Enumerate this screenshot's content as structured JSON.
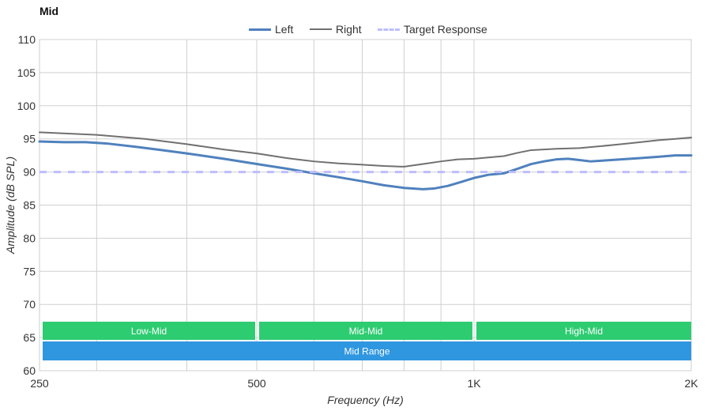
{
  "chart_data": {
    "type": "line",
    "title": "Mid",
    "xlabel": "Frequency (Hz)",
    "ylabel": "Amplitude (dB SPL)",
    "x_scale": "log",
    "xlim": [
      250,
      2000
    ],
    "ylim": [
      60,
      110
    ],
    "x_ticks": [
      {
        "value": 250,
        "label": "250"
      },
      {
        "value": 500,
        "label": "500"
      },
      {
        "value": 1000,
        "label": "1K"
      },
      {
        "value": 2000,
        "label": "2K"
      }
    ],
    "y_ticks": [
      60,
      65,
      70,
      75,
      80,
      85,
      90,
      95,
      100,
      105,
      110
    ],
    "x_minor_gridlines": [
      300,
      400,
      500,
      600,
      700,
      800,
      900,
      1000
    ],
    "grid": true,
    "legend_position": "top-center",
    "series": [
      {
        "name": "Left",
        "color": "#4f81bd",
        "style": "solid",
        "x": [
          250,
          270,
          290,
          310,
          340,
          370,
          400,
          450,
          500,
          550,
          600,
          650,
          700,
          750,
          800,
          850,
          880,
          920,
          960,
          1000,
          1050,
          1100,
          1150,
          1200,
          1250,
          1300,
          1350,
          1400,
          1450,
          1500,
          1600,
          1700,
          1800,
          1900,
          2000
        ],
        "y": [
          94.6,
          94.5,
          94.5,
          94.3,
          93.8,
          93.3,
          92.8,
          92.0,
          91.2,
          90.5,
          89.8,
          89.2,
          88.6,
          88.0,
          87.6,
          87.4,
          87.5,
          87.9,
          88.5,
          89.1,
          89.6,
          89.8,
          90.5,
          91.2,
          91.6,
          91.9,
          92.0,
          91.8,
          91.6,
          91.7,
          91.9,
          92.1,
          92.3,
          92.5,
          92.5
        ]
      },
      {
        "name": "Right",
        "color": "#707070",
        "style": "solid",
        "x": [
          250,
          300,
          350,
          400,
          450,
          500,
          550,
          600,
          650,
          700,
          750,
          800,
          850,
          900,
          950,
          1000,
          1050,
          1100,
          1150,
          1200,
          1300,
          1400,
          1500,
          1600,
          1700,
          1800,
          1900,
          2000
        ],
        "y": [
          96.0,
          95.6,
          95.0,
          94.2,
          93.4,
          92.8,
          92.1,
          91.6,
          91.3,
          91.1,
          90.9,
          90.8,
          91.2,
          91.6,
          91.9,
          92.0,
          92.2,
          92.4,
          92.9,
          93.3,
          93.5,
          93.6,
          93.9,
          94.2,
          94.5,
          94.8,
          95.0,
          95.2
        ]
      },
      {
        "name": "Target Response",
        "color": "#bdbdff",
        "style": "dashed",
        "x": [
          250,
          2000
        ],
        "y": [
          90,
          90
        ]
      }
    ],
    "ranges": [
      {
        "label": "Low-Mid",
        "from": 250,
        "to": 500,
        "color": "#2ecc71"
      },
      {
        "label": "Mid-Mid",
        "from": 500,
        "to": 1000,
        "color": "#2ecc71"
      },
      {
        "label": "High-Mid",
        "from": 1000,
        "to": 2000,
        "color": "#2ecc71"
      },
      {
        "label": "Mid Range",
        "from": 250,
        "to": 2000,
        "color": "#2f96e0"
      }
    ]
  }
}
